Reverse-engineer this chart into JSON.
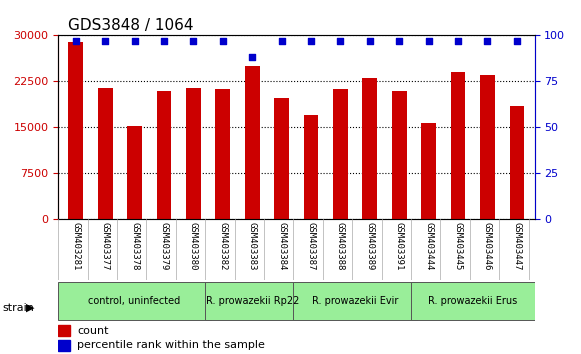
{
  "title": "GDS3848 / 1064",
  "samples": [
    "GSM403281",
    "GSM403377",
    "GSM403378",
    "GSM403379",
    "GSM403380",
    "GSM403382",
    "GSM403383",
    "GSM403384",
    "GSM403387",
    "GSM403388",
    "GSM403389",
    "GSM403391",
    "GSM403444",
    "GSM403445",
    "GSM403446",
    "GSM403447"
  ],
  "counts": [
    29000,
    21500,
    15200,
    20900,
    21500,
    21300,
    25000,
    19800,
    17000,
    21300,
    23000,
    21000,
    15800,
    24000,
    23500,
    18500
  ],
  "percentiles": [
    97,
    97,
    97,
    97,
    97,
    97,
    88,
    97,
    97,
    97,
    97,
    97,
    97,
    97,
    97,
    97
  ],
  "bar_color": "#cc0000",
  "dot_color": "#0000cc",
  "ylim_left": [
    0,
    30000
  ],
  "ylim_right": [
    0,
    100
  ],
  "yticks_left": [
    0,
    7500,
    15000,
    22500,
    30000
  ],
  "yticks_right": [
    0,
    25,
    50,
    75,
    100
  ],
  "strain_groups": [
    {
      "label": "control, uninfected",
      "start": 0,
      "end": 5,
      "color": "#99ee99"
    },
    {
      "label": "R. prowazekii Rp22",
      "start": 5,
      "end": 8,
      "color": "#99ee99"
    },
    {
      "label": "R. prowazekii Evir",
      "start": 8,
      "end": 12,
      "color": "#99ee99"
    },
    {
      "label": "R. prowazekii Erus",
      "start": 12,
      "end": 16,
      "color": "#99ee99"
    }
  ],
  "strain_label": "strain",
  "legend_count_label": "count",
  "legend_pct_label": "percentile rank within the sample",
  "bg_color": "#ffffff",
  "plot_bg_color": "#ffffff",
  "tick_label_color_left": "#cc0000",
  "tick_label_color_right": "#0000cc",
  "xlabel_bg": "#cccccc",
  "title_fontsize": 11,
  "axis_fontsize": 8,
  "tick_fontsize": 8
}
